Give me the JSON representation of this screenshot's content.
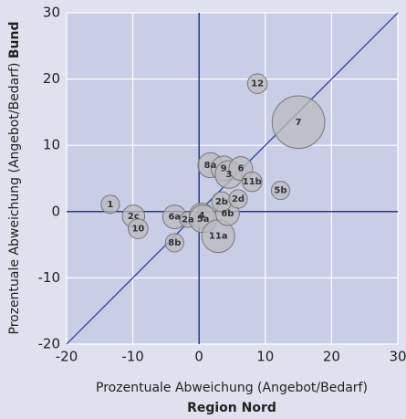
{
  "chart_data": {
    "type": "bubble",
    "x_label": "Prozentuale Abweichung (Angebot/Bedarf)",
    "x_label_sub": "Region Nord",
    "y_label": "Prozentuale Abweichung (Angebot/Bedarf)",
    "y_label_sub": "Bund",
    "labels": [
      "1",
      "2c",
      "10",
      "6a",
      "8b",
      "2a",
      "4",
      "5a",
      "11a",
      "6b",
      "2b",
      "2d",
      "8a",
      "9",
      "3",
      "6",
      "11b",
      "5b",
      "12",
      "7"
    ],
    "x": [
      -13.4,
      -9.9,
      -9.2,
      -3.7,
      -3.7,
      -1.7,
      0.4,
      0.6,
      2.9,
      4.3,
      3.4,
      5.9,
      1.7,
      3.7,
      4.5,
      6.3,
      8.0,
      12.3,
      8.8,
      15.0
    ],
    "values": [
      1.1,
      -0.7,
      -2.6,
      -0.8,
      -4.7,
      -1.2,
      -0.6,
      -1.1,
      -3.7,
      -0.3,
      1.5,
      1.9,
      7.0,
      6.5,
      5.6,
      6.5,
      4.5,
      3.2,
      19.3,
      13.5
    ],
    "sizes": [
      1.4,
      1.7,
      1.5,
      1.8,
      1.4,
      1.2,
      1.9,
      2.1,
      2.5,
      1.8,
      1.5,
      1.4,
      1.9,
      1.9,
      2.1,
      1.8,
      1.5,
      1.4,
      1.5,
      4.0
    ],
    "color": "#b9b9bf",
    "xlim": [
      -20,
      30
    ],
    "ylim": [
      -20,
      30
    ],
    "xticks": [
      -20,
      -10,
      0,
      10,
      20,
      30
    ],
    "yticks": [
      -20,
      -10,
      0,
      10,
      20,
      30
    ],
    "grid": true,
    "zero_lines": true,
    "diagonal": true
  }
}
